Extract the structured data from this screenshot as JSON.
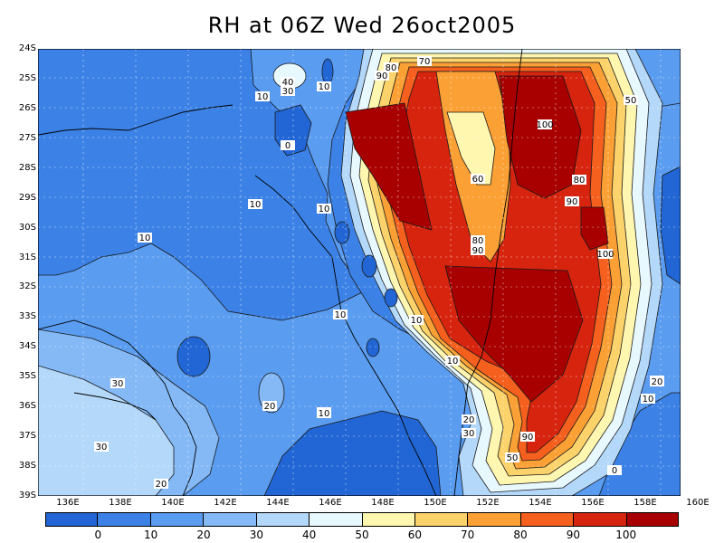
{
  "title": "RH at 06Z Wed 26oct2005",
  "lat_labels": [
    "24S",
    "25S",
    "26S",
    "27S",
    "28S",
    "29S",
    "30S",
    "31S",
    "32S",
    "33S",
    "34S",
    "35S",
    "36S",
    "37S",
    "38S",
    "39S"
  ],
  "lon_labels": [
    "136E",
    "138E",
    "140E",
    "142E",
    "144E",
    "146E",
    "148E",
    "150E",
    "152E",
    "154E",
    "156E",
    "158E",
    "160E"
  ],
  "colorbar": {
    "colors": [
      "#2166d4",
      "#3c82e6",
      "#5a9cf0",
      "#84b9f6",
      "#b4d8fa",
      "#e8f8ff",
      "#fff6b0",
      "#fcd26a",
      "#fba035",
      "#f5601e",
      "#d6240e",
      "#a80000"
    ],
    "labels": [
      "0",
      "10",
      "20",
      "30",
      "40",
      "50",
      "60",
      "70",
      "80",
      "90",
      "100"
    ]
  },
  "contour_labels": [
    {
      "text": "40"
    },
    {
      "text": "30"
    },
    {
      "text": "10"
    },
    {
      "text": "10"
    },
    {
      "text": "90"
    },
    {
      "text": "80"
    },
    {
      "text": "70"
    },
    {
      "text": "0"
    },
    {
      "text": "10"
    },
    {
      "text": "10"
    },
    {
      "text": "100"
    },
    {
      "text": "50"
    },
    {
      "text": "60"
    },
    {
      "text": "80"
    },
    {
      "text": "90"
    },
    {
      "text": "80"
    },
    {
      "text": "90"
    },
    {
      "text": "100"
    },
    {
      "text": "10"
    },
    {
      "text": "10"
    },
    {
      "text": "10"
    },
    {
      "text": "10"
    },
    {
      "text": "30"
    },
    {
      "text": "20"
    },
    {
      "text": "20"
    },
    {
      "text": "10"
    },
    {
      "text": "20"
    },
    {
      "text": "30"
    },
    {
      "text": "30"
    },
    {
      "text": "20"
    },
    {
      "text": "90"
    },
    {
      "text": "50"
    },
    {
      "text": "10"
    },
    {
      "text": "0"
    },
    {
      "text": "20"
    },
    {
      "text": "10"
    }
  ]
}
